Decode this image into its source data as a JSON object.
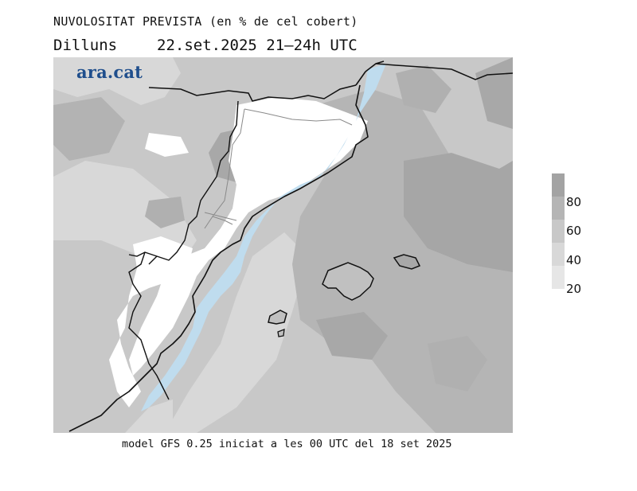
{
  "header": {
    "title": "NUVOLOSITAT PREVISTA (en % de cel cobert)",
    "day": "Dilluns",
    "date_range": "22.set.2025 21–24h UTC"
  },
  "logo": {
    "text": "ara.cat",
    "color": "#1f4e8c"
  },
  "legend": {
    "ticks": [
      {
        "label": "80",
        "value": 80
      },
      {
        "label": "60",
        "value": 60
      },
      {
        "label": "40",
        "value": 40
      },
      {
        "label": "20",
        "value": 20
      }
    ],
    "colors": [
      "#a3a3a3",
      "#b5b5b5",
      "#c8c8c8",
      "#d8d8d8",
      "#e6e6e6"
    ]
  },
  "map": {
    "sea_light_color": "#bfdcee",
    "land_clear_color": "#ffffff"
  },
  "footer": {
    "text": "model GFS 0.25 iniciat a les 00 UTC del 18 set 2025"
  }
}
